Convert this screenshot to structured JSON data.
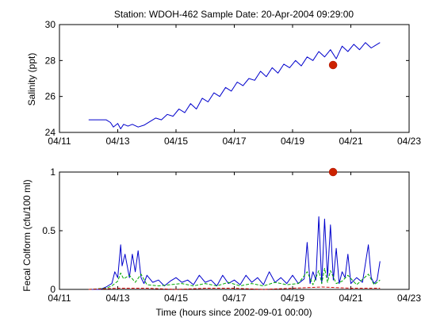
{
  "chart_data": [
    {
      "type": "line",
      "title": "Station: WDOH-462  Sample Date: 20-Apr-2004 09:29:00",
      "xlabel": "",
      "ylabel": "Salinity (ppt)",
      "x_unit": "days since 2004-04-11",
      "xlim": [
        0,
        12
      ],
      "ylim": [
        24,
        30
      ],
      "x_ticks": [
        0,
        2,
        4,
        6,
        8,
        10,
        12
      ],
      "x_tick_labels": [
        "04/11",
        "04/13",
        "04/15",
        "04/17",
        "04/19",
        "04/21",
        "04/23"
      ],
      "y_ticks": [
        24,
        26,
        28,
        30
      ],
      "y_tick_labels": [
        "24",
        "26",
        "28",
        "30"
      ],
      "grid": false,
      "series": [
        {
          "color": "#0000cc",
          "style": "solid",
          "x": [
            1.0,
            1.3,
            1.6,
            1.75,
            1.85,
            2.0,
            2.1,
            2.2,
            2.35,
            2.5,
            2.7,
            2.9,
            3.1,
            3.3,
            3.5,
            3.7,
            3.9,
            4.1,
            4.3,
            4.5,
            4.7,
            4.9,
            5.1,
            5.3,
            5.5,
            5.7,
            5.9,
            6.1,
            6.3,
            6.5,
            6.7,
            6.9,
            7.1,
            7.3,
            7.5,
            7.7,
            7.9,
            8.1,
            8.3,
            8.5,
            8.7,
            8.9,
            9.1,
            9.3,
            9.5,
            9.7,
            9.9,
            10.1,
            10.3,
            10.5,
            10.7,
            10.9,
            11.0
          ],
          "y": [
            24.7,
            24.7,
            24.7,
            24.55,
            24.3,
            24.5,
            24.2,
            24.45,
            24.35,
            24.45,
            24.3,
            24.4,
            24.6,
            24.8,
            24.7,
            25.0,
            24.9,
            25.3,
            25.1,
            25.6,
            25.3,
            25.9,
            25.7,
            26.2,
            26.0,
            26.5,
            26.3,
            26.8,
            26.6,
            27.0,
            26.9,
            27.4,
            27.1,
            27.6,
            27.3,
            27.8,
            27.6,
            28.0,
            27.7,
            28.2,
            28.0,
            28.5,
            28.2,
            28.6,
            28.1,
            28.8,
            28.5,
            28.9,
            28.6,
            29.0,
            28.7,
            28.9,
            29.0
          ]
        },
        {
          "type": "scatter",
          "color": "#cc2200",
          "x": [
            9.39
          ],
          "y": [
            27.75
          ]
        }
      ]
    },
    {
      "type": "line",
      "title": "",
      "xlabel": "Time (hours since 2002-09-01 00:00)",
      "ylabel": "Fecal Colform (cfu/100 ml)",
      "x_unit": "days since 2004-04-11",
      "xlim": [
        0,
        12
      ],
      "ylim": [
        0,
        1.0
      ],
      "x_ticks": [
        0,
        2,
        4,
        6,
        8,
        10,
        12
      ],
      "x_tick_labels": [
        "04/11",
        "04/13",
        "04/15",
        "04/17",
        "04/19",
        "04/21",
        "04/23"
      ],
      "y_ticks": [
        0,
        0.5,
        1
      ],
      "y_tick_labels": [
        "0",
        "0.5",
        "1"
      ],
      "grid": false,
      "series": [
        {
          "color": "#0000cc",
          "style": "solid",
          "x": [
            1.0,
            1.4,
            1.6,
            1.8,
            1.9,
            2.0,
            2.1,
            2.15,
            2.25,
            2.4,
            2.5,
            2.6,
            2.7,
            2.8,
            2.9,
            3.0,
            3.2,
            3.4,
            3.6,
            3.8,
            4.0,
            4.2,
            4.4,
            4.6,
            4.8,
            5.0,
            5.2,
            5.4,
            5.6,
            5.8,
            6.0,
            6.2,
            6.4,
            6.6,
            6.8,
            7.0,
            7.2,
            7.4,
            7.6,
            7.8,
            8.0,
            8.2,
            8.4,
            8.5,
            8.6,
            8.7,
            8.8,
            8.9,
            9.0,
            9.1,
            9.2,
            9.3,
            9.4,
            9.5,
            9.6,
            9.7,
            9.8,
            9.9,
            10.0,
            10.2,
            10.4,
            10.6,
            10.7,
            10.8,
            10.9,
            11.0
          ],
          "y": [
            0.0,
            0.0,
            0.02,
            0.05,
            0.15,
            0.1,
            0.38,
            0.2,
            0.3,
            0.1,
            0.3,
            0.15,
            0.33,
            0.1,
            0.05,
            0.12,
            0.06,
            0.08,
            0.03,
            0.07,
            0.1,
            0.06,
            0.08,
            0.04,
            0.12,
            0.06,
            0.08,
            0.03,
            0.12,
            0.05,
            0.08,
            0.04,
            0.12,
            0.06,
            0.1,
            0.04,
            0.15,
            0.06,
            0.1,
            0.05,
            0.12,
            0.05,
            0.09,
            0.4,
            0.05,
            0.15,
            0.08,
            0.62,
            0.05,
            0.6,
            0.1,
            0.55,
            0.08,
            0.35,
            0.05,
            0.15,
            0.1,
            0.3,
            0.05,
            0.1,
            0.06,
            0.38,
            0.1,
            0.05,
            0.08,
            0.24
          ]
        },
        {
          "color": "#00aa00",
          "style": "dashed",
          "x": [
            1.0,
            1.6,
            1.8,
            2.0,
            2.1,
            2.2,
            2.4,
            2.6,
            2.8,
            3.0,
            3.4,
            3.8,
            4.2,
            4.6,
            5.0,
            5.4,
            5.8,
            6.2,
            6.6,
            7.0,
            7.4,
            7.8,
            8.2,
            8.5,
            8.7,
            8.9,
            9.0,
            9.1,
            9.2,
            9.3,
            9.5,
            9.7,
            9.9,
            10.2,
            10.6,
            10.8,
            11.0
          ],
          "y": [
            0.0,
            0.01,
            0.03,
            0.07,
            0.14,
            0.09,
            0.12,
            0.06,
            0.13,
            0.04,
            0.03,
            0.04,
            0.05,
            0.03,
            0.05,
            0.03,
            0.06,
            0.03,
            0.05,
            0.03,
            0.06,
            0.04,
            0.05,
            0.15,
            0.04,
            0.16,
            0.05,
            0.18,
            0.06,
            0.16,
            0.05,
            0.07,
            0.12,
            0.04,
            0.13,
            0.04,
            0.08
          ]
        },
        {
          "color": "#cc0000",
          "style": "dashed",
          "x": [
            1.0,
            2.0,
            3.0,
            4.0,
            5.0,
            6.0,
            7.0,
            8.0,
            9.0,
            10.0,
            11.0
          ],
          "y": [
            0.0,
            0.01,
            0.01,
            0.0,
            0.01,
            0.01,
            0.0,
            0.01,
            0.02,
            0.01,
            0.01
          ]
        },
        {
          "type": "scatter",
          "color": "#cc2200",
          "x": [
            9.39
          ],
          "y": [
            1.0
          ]
        }
      ]
    }
  ]
}
